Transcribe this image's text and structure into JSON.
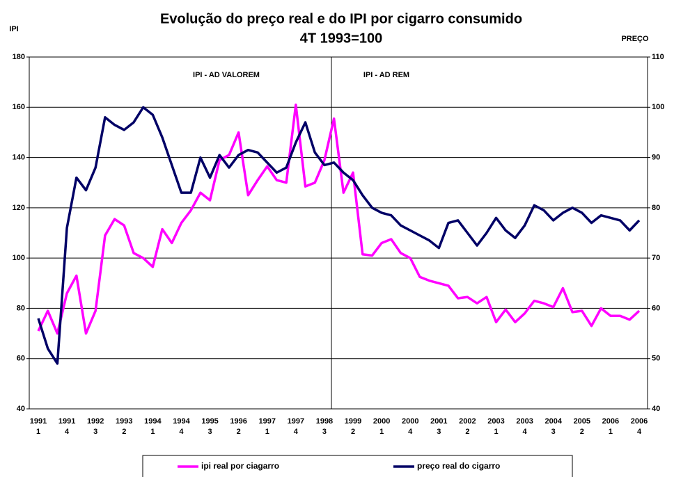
{
  "chart_data": {
    "type": "line",
    "title": "Evolução do preço real e do IPI por cigarro consumido",
    "subtitle": "4T 1993=100",
    "y_label": "IPI",
    "y2_label": "PREÇO",
    "annotations": [
      "IPI - AD VALOREM",
      "IPI - AD REM"
    ],
    "categories": [
      [
        "1991",
        "1"
      ],
      null,
      null,
      [
        "1991",
        "4"
      ],
      null,
      null,
      [
        "1992",
        "3"
      ],
      null,
      null,
      [
        "1993",
        "2"
      ],
      null,
      null,
      [
        "1994",
        "1"
      ],
      null,
      null,
      [
        "1994",
        "4"
      ],
      null,
      null,
      [
        "1995",
        "3"
      ],
      null,
      null,
      [
        "1996",
        "2"
      ],
      null,
      null,
      [
        "1997",
        "1"
      ],
      null,
      null,
      [
        "1997",
        "4"
      ],
      null,
      null,
      [
        "1998",
        "3"
      ],
      null,
      null,
      [
        "1999",
        "2"
      ],
      null,
      null,
      [
        "2000",
        "1"
      ],
      null,
      null,
      [
        "2000",
        "4"
      ],
      null,
      null,
      [
        "2001",
        "3"
      ],
      null,
      null,
      [
        "2002",
        "2"
      ],
      null,
      null,
      [
        "2003",
        "1"
      ],
      null,
      null,
      [
        "2003",
        "4"
      ],
      null,
      null,
      [
        "2004",
        "3"
      ],
      null,
      null,
      [
        "2005",
        "2"
      ],
      null,
      null,
      [
        "2006",
        "1"
      ],
      null,
      null,
      [
        "2006",
        "4"
      ]
    ],
    "series": [
      {
        "name": "ipi real por ciagarro",
        "color": "#ff00ff",
        "axis": "y",
        "values": [
          71,
          79,
          70,
          86,
          93,
          70,
          79,
          109,
          115.5,
          113,
          102,
          100,
          96.5,
          111.5,
          106,
          114,
          119,
          126,
          123,
          139,
          141,
          150,
          125,
          131,
          136.5,
          131,
          130,
          161,
          128.5,
          130,
          139,
          155.5,
          126,
          134,
          101.5,
          101,
          106,
          107.5,
          102,
          100,
          92.5,
          91,
          90,
          89,
          84,
          84.5,
          82,
          84.5,
          74.5,
          79.5,
          74.5,
          78,
          83,
          82,
          80.5,
          88,
          78.5,
          79,
          73,
          80,
          77,
          77,
          75.5,
          79
        ]
      },
      {
        "name": "preço real do cigarro",
        "color": "#000066",
        "axis": "y2",
        "values": [
          58,
          52,
          49,
          76,
          86,
          83.5,
          88,
          98,
          96.5,
          95.5,
          97,
          100,
          98.5,
          94,
          88.5,
          83,
          83,
          90,
          86,
          90.5,
          88,
          90.5,
          91.5,
          91,
          89,
          87,
          88,
          93,
          97,
          91,
          88.5,
          89,
          87,
          85.5,
          82.5,
          80,
          79,
          78.5,
          76.5,
          75.5,
          74.5,
          73.5,
          72,
          77,
          77.5,
          75,
          72.5,
          75,
          78,
          75.5,
          74,
          76.5,
          80.5,
          79.5,
          77.5,
          79,
          80,
          79,
          77,
          78.5,
          78,
          77.5,
          75.5,
          77.5
        ]
      }
    ],
    "ylim": [
      40,
      180
    ],
    "yticks": [
      40,
      60,
      80,
      100,
      120,
      140,
      160,
      180
    ],
    "y2lim": [
      40,
      110
    ],
    "y2ticks": [
      40,
      50,
      60,
      70,
      80,
      90,
      100,
      110
    ],
    "grid": true
  }
}
